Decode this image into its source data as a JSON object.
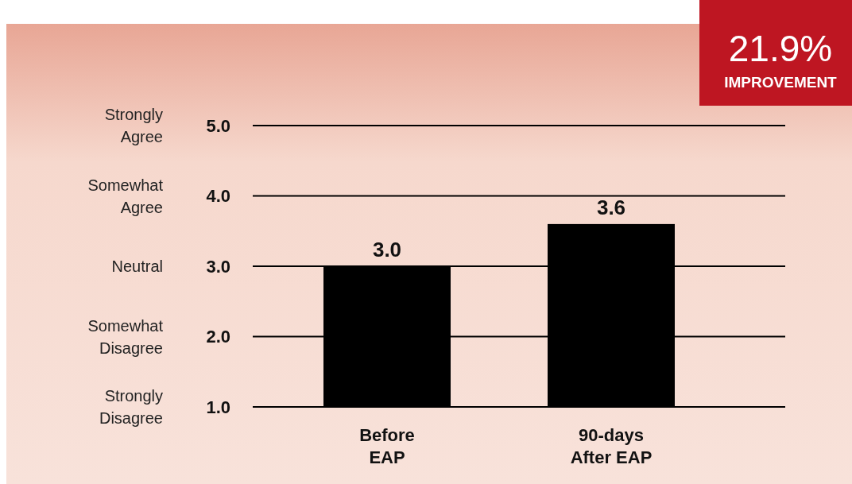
{
  "chart_data": {
    "type": "bar",
    "categories": [
      "Before EAP",
      "90-days After EAP"
    ],
    "values": [
      3.0,
      3.6
    ],
    "color": "#000000",
    "ylim": [
      1,
      5
    ],
    "yticks": [
      {
        "value": 1,
        "label": "1.0"
      },
      {
        "value": 2,
        "label": "2.0"
      },
      {
        "value": 3,
        "label": "3.0"
      },
      {
        "value": 4,
        "label": "4.0"
      },
      {
        "value": 5,
        "label": "5.0"
      }
    ],
    "grid": "y",
    "value_labels": [
      "3.0",
      "3.6"
    ],
    "annotations": [
      "Strongly Agree",
      "Somewhat Agree",
      "Neutral",
      "Somewhat Disagree",
      "Strongly Disagree",
      "21.9%",
      "IMPROVEMENT"
    ]
  }
}
